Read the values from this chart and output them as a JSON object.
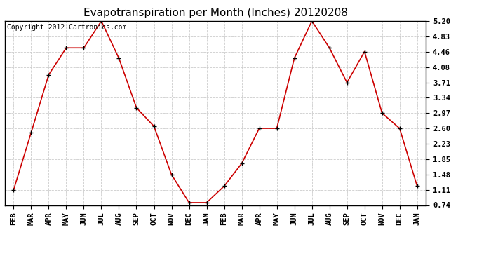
{
  "title": "Evapotranspiration per Month (Inches) 20120208",
  "copyright_text": "Copyright 2012 Cartronics.com",
  "x_labels": [
    "FEB",
    "MAR",
    "APR",
    "MAY",
    "JUN",
    "JUL",
    "AUG",
    "SEP",
    "OCT",
    "NOV",
    "DEC",
    "JAN",
    "FEB",
    "MAR",
    "APR",
    "MAY",
    "JUN",
    "JUL",
    "AUG",
    "SEP",
    "OCT",
    "NOV",
    "DEC",
    "JAN"
  ],
  "y_values": [
    1.11,
    2.5,
    3.9,
    4.55,
    4.55,
    5.2,
    4.3,
    3.1,
    2.65,
    1.48,
    0.8,
    0.8,
    1.2,
    1.75,
    2.6,
    2.6,
    4.3,
    5.2,
    4.55,
    3.71,
    4.46,
    2.97,
    2.6,
    1.2
  ],
  "y_min": 0.74,
  "y_max": 5.2,
  "y_ticks": [
    0.74,
    1.11,
    1.48,
    1.85,
    2.23,
    2.6,
    2.97,
    3.34,
    3.71,
    4.08,
    4.46,
    4.83,
    5.2
  ],
  "line_color": "#cc0000",
  "marker_color": "#000000",
  "background_color": "#ffffff",
  "grid_color": "#cccccc",
  "title_fontsize": 11,
  "copyright_fontsize": 7,
  "tick_fontsize": 7.5
}
